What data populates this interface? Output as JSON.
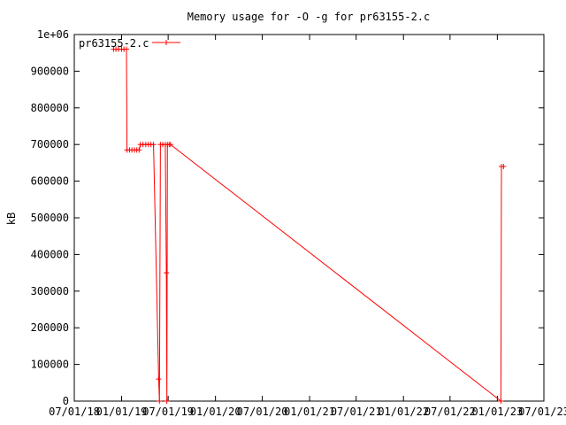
{
  "chart_data": {
    "type": "line",
    "title": "Memory usage for -O -g for pr63155-2.c",
    "xlabel": "",
    "ylabel": "kB",
    "ylim": [
      0,
      1000000
    ],
    "yticks": [
      0,
      100000,
      200000,
      300000,
      400000,
      500000,
      600000,
      700000,
      800000,
      900000,
      1000000
    ],
    "ytick_labels": [
      "0",
      "100000",
      "200000",
      "300000",
      "400000",
      "500000",
      "600000",
      "700000",
      "800000",
      "900000",
      "1e+06"
    ],
    "xlim": [
      "2018-07-01",
      "2023-07-01"
    ],
    "xticks": [
      "2018-07-01",
      "2019-01-01",
      "2019-07-01",
      "2020-01-01",
      "2020-07-01",
      "2021-01-01",
      "2021-07-01",
      "2022-01-01",
      "2022-07-01",
      "2023-01-01",
      "2023-07-01"
    ],
    "xtick_labels": [
      "07/01/18",
      "01/01/19",
      "07/01/19",
      "01/01/20",
      "07/01/20",
      "01/01/21",
      "07/01/21",
      "01/01/22",
      "07/01/22",
      "01/01/23",
      "07/01/23"
    ],
    "grid": false,
    "legend_position": "top-left",
    "series": [
      {
        "name": "pr63155-2.c",
        "color": "#ff0000",
        "marker": "plus",
        "points": [
          {
            "x": "2018-12-01",
            "y": 960000
          },
          {
            "x": "2018-12-10",
            "y": 960000
          },
          {
            "x": "2018-12-20",
            "y": 960000
          },
          {
            "x": "2019-01-01",
            "y": 960000
          },
          {
            "x": "2019-01-10",
            "y": 960000
          },
          {
            "x": "2019-01-20",
            "y": 960000
          },
          {
            "x": "2019-01-22",
            "y": 685000
          },
          {
            "x": "2019-02-01",
            "y": 685000
          },
          {
            "x": "2019-02-10",
            "y": 685000
          },
          {
            "x": "2019-02-20",
            "y": 685000
          },
          {
            "x": "2019-03-01",
            "y": 685000
          },
          {
            "x": "2019-03-10",
            "y": 685000
          },
          {
            "x": "2019-03-15",
            "y": 700000
          },
          {
            "x": "2019-03-25",
            "y": 700000
          },
          {
            "x": "2019-04-05",
            "y": 700000
          },
          {
            "x": "2019-04-15",
            "y": 700000
          },
          {
            "x": "2019-04-25",
            "y": 700000
          },
          {
            "x": "2019-05-05",
            "y": 700000
          },
          {
            "x": "2019-05-25",
            "y": 60000
          },
          {
            "x": "2019-05-28",
            "y": 0
          },
          {
            "x": "2019-06-01",
            "y": 700000
          },
          {
            "x": "2019-06-10",
            "y": 700000
          },
          {
            "x": "2019-06-20",
            "y": 700000
          },
          {
            "x": "2019-06-24",
            "y": 350000
          },
          {
            "x": "2019-06-26",
            "y": 0
          },
          {
            "x": "2019-06-28",
            "y": 700000
          },
          {
            "x": "2019-07-05",
            "y": 700000
          },
          {
            "x": "2019-07-10",
            "y": 700000
          },
          {
            "x": "2023-01-15",
            "y": 0
          },
          {
            "x": "2023-01-17",
            "y": 640000
          },
          {
            "x": "2023-01-25",
            "y": 640000
          }
        ]
      }
    ]
  }
}
